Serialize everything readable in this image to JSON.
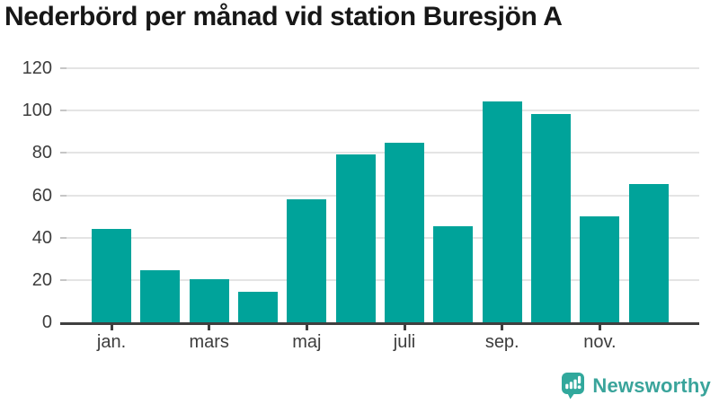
{
  "header": {
    "title": "Nederbörd per månad vid station Buresjön A"
  },
  "chart_data": {
    "type": "bar",
    "title": "Nederbörd per månad vid station Buresjön A",
    "values": [
      44,
      24.5,
      20.5,
      14.5,
      58,
      79.5,
      85,
      45.5,
      104.5,
      98.5,
      50,
      65.5
    ],
    "x_tick_labels": [
      "jan.",
      "mars",
      "maj",
      "juli",
      "sep.",
      "nov."
    ],
    "x_tick_bar_indices": [
      0,
      2,
      4,
      6,
      8,
      10
    ],
    "yticks": [
      0,
      20,
      40,
      60,
      80,
      100,
      120
    ],
    "ylim": [
      0,
      120
    ],
    "grid": "horizontal",
    "legend": "none",
    "bar_color": "#00a39a",
    "axis_color": "#3f3f3f",
    "gridline_color": "#e4e4e4",
    "grid_stub_color": "#c6c6c6",
    "tick_label_color": "#3d3d3d"
  },
  "footer": {
    "brand": "Newsworthy",
    "brand_color": "#3aa49b",
    "icon_color": "#31a89c",
    "icon": "newsworthy-speech-bubble-bar-chart-icon"
  }
}
